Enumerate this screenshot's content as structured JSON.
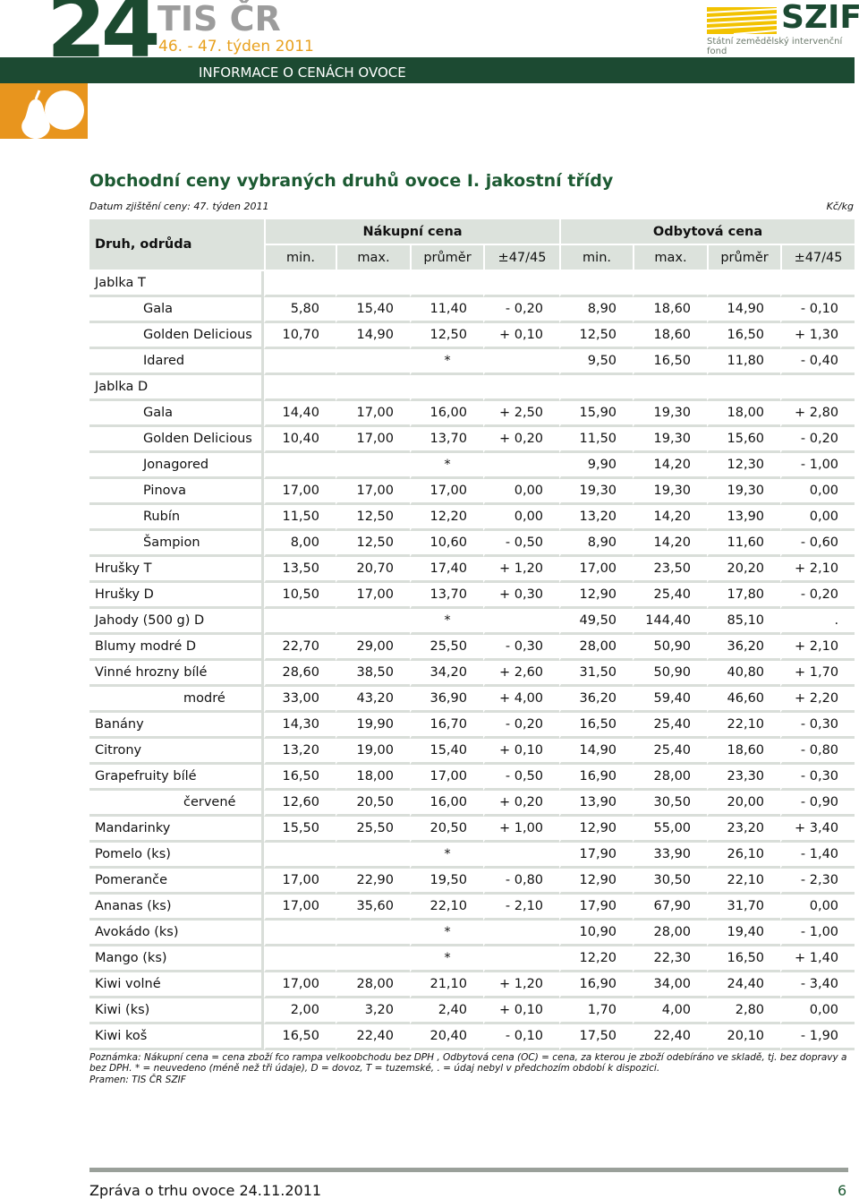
{
  "header": {
    "number": "24",
    "brand": "TIS ČR",
    "week": "46. - 47. týden 2011",
    "band": "INFORMACE O CENÁCH OVOCE",
    "logo": "SZIF",
    "logo_subtitle": "Státní zemědělský intervenční fond"
  },
  "title": "Obchodní ceny vybraných druhů ovoce I. jakostní třídy",
  "date": "Datum zjištění ceny: 47. týden 2011",
  "unit": "Kč/kg",
  "table": {
    "columns": {
      "label": "Druh, odrůda",
      "groups": [
        "Nákupní cena",
        "Odbytová cena"
      ],
      "sub": [
        "min.",
        "max.",
        "průměr",
        "±47/45",
        "min.",
        "max.",
        "průměr",
        "±47/45"
      ]
    },
    "rows": [
      {
        "label": "Jablka T",
        "sub": [
          {
            "label": "Gala",
            "cells": [
              "5,80",
              "15,40",
              "11,40",
              "- 0,20",
              "8,90",
              "18,60",
              "14,90",
              "- 0,10"
            ]
          },
          {
            "label": "Golden Delicious",
            "cells": [
              "10,70",
              "14,90",
              "12,50",
              "+ 0,10",
              "12,50",
              "18,60",
              "16,50",
              "+ 1,30"
            ]
          },
          {
            "label": "Idared",
            "cells": [
              null,
              null,
              "*",
              null,
              "9,50",
              "16,50",
              "11,80",
              "- 0,40"
            ]
          }
        ]
      },
      {
        "label": "Jablka D",
        "sub": [
          {
            "label": "Gala",
            "cells": [
              "14,40",
              "17,00",
              "16,00",
              "+ 2,50",
              "15,90",
              "19,30",
              "18,00",
              "+ 2,80"
            ]
          },
          {
            "label": "Golden Delicious",
            "cells": [
              "10,40",
              "17,00",
              "13,70",
              "+ 0,20",
              "11,50",
              "19,30",
              "15,60",
              "- 0,20"
            ]
          },
          {
            "label": "Jonagored",
            "cells": [
              null,
              null,
              "*",
              null,
              "9,90",
              "14,20",
              "12,30",
              "- 1,00"
            ]
          },
          {
            "label": "Pinova",
            "cells": [
              "17,00",
              "17,00",
              "17,00",
              "0,00",
              "19,30",
              "19,30",
              "19,30",
              "0,00"
            ]
          },
          {
            "label": "Rubín",
            "cells": [
              "11,50",
              "12,50",
              "12,20",
              "0,00",
              "13,20",
              "14,20",
              "13,90",
              "0,00"
            ]
          },
          {
            "label": "Šampion",
            "cells": [
              "8,00",
              "12,50",
              "10,60",
              "- 0,50",
              "8,90",
              "14,20",
              "11,60",
              "- 0,60"
            ]
          }
        ]
      },
      {
        "label": "Hrušky T",
        "cells": [
          "13,50",
          "20,70",
          "17,40",
          "+ 1,20",
          "17,00",
          "23,50",
          "20,20",
          "+ 2,10"
        ]
      },
      {
        "label": "Hrušky D",
        "cells": [
          "10,50",
          "17,00",
          "13,70",
          "+ 0,30",
          "12,90",
          "25,40",
          "17,80",
          "- 0,20"
        ]
      },
      {
        "label": "Jahody (500 g) D",
        "cells": [
          null,
          null,
          "*",
          null,
          "49,50",
          "144,40",
          "85,10",
          "."
        ]
      },
      {
        "label": "Blumy modré D",
        "cells": [
          "22,70",
          "29,00",
          "25,50",
          "- 0,30",
          "28,00",
          "50,90",
          "36,20",
          "+ 2,10"
        ]
      },
      {
        "label": "Vinné hrozny bílé",
        "cells": [
          "28,60",
          "38,50",
          "34,20",
          "+ 2,60",
          "31,50",
          "50,90",
          "40,80",
          "+ 1,70"
        ],
        "sub": [
          {
            "label": "modré",
            "cells": [
              "33,00",
              "43,20",
              "36,90",
              "+ 4,00",
              "36,20",
              "59,40",
              "46,60",
              "+ 2,20"
            ]
          }
        ]
      },
      {
        "label": "Banány",
        "cells": [
          "14,30",
          "19,90",
          "16,70",
          "- 0,20",
          "16,50",
          "25,40",
          "22,10",
          "- 0,30"
        ]
      },
      {
        "label": "Citrony",
        "cells": [
          "13,20",
          "19,00",
          "15,40",
          "+ 0,10",
          "14,90",
          "25,40",
          "18,60",
          "- 0,80"
        ]
      },
      {
        "label": "Grapefruity bílé",
        "cells": [
          "16,50",
          "18,00",
          "17,00",
          "- 0,50",
          "16,90",
          "28,00",
          "23,30",
          "- 0,30"
        ],
        "sub": [
          {
            "label": "červené",
            "cells": [
              "12,60",
              "20,50",
              "16,00",
              "+ 0,20",
              "13,90",
              "30,50",
              "20,00",
              "- 0,90"
            ]
          }
        ]
      },
      {
        "label": "Mandarinky",
        "cells": [
          "15,50",
          "25,50",
          "20,50",
          "+ 1,00",
          "12,90",
          "55,00",
          "23,20",
          "+ 3,40"
        ]
      },
      {
        "label": "Pomelo (ks)",
        "cells": [
          null,
          null,
          "*",
          null,
          "17,90",
          "33,90",
          "26,10",
          "- 1,40"
        ]
      },
      {
        "label": "Pomeranče",
        "cells": [
          "17,00",
          "22,90",
          "19,50",
          "- 0,80",
          "12,90",
          "30,50",
          "22,10",
          "- 2,30"
        ]
      },
      {
        "label": "Ananas (ks)",
        "cells": [
          "17,00",
          "35,60",
          "22,10",
          "- 2,10",
          "17,90",
          "67,90",
          "31,70",
          "0,00"
        ]
      },
      {
        "label": "Avokádo (ks)",
        "cells": [
          null,
          null,
          "*",
          null,
          "10,90",
          "28,00",
          "19,40",
          "- 1,00"
        ]
      },
      {
        "label": "Mango (ks)",
        "cells": [
          null,
          null,
          "*",
          null,
          "12,20",
          "22,30",
          "16,50",
          "+ 1,40"
        ]
      },
      {
        "label": "Kiwi volné",
        "cells": [
          "17,00",
          "28,00",
          "21,10",
          "+ 1,20",
          "16,90",
          "34,00",
          "24,40",
          "- 3,40"
        ]
      },
      {
        "label": "Kiwi (ks)",
        "cells": [
          "2,00",
          "3,20",
          "2,40",
          "+ 0,10",
          "1,70",
          "4,00",
          "2,80",
          "0,00"
        ]
      },
      {
        "label": "Kiwi koš",
        "cells": [
          "16,50",
          "22,40",
          "20,40",
          "- 0,10",
          "17,50",
          "22,40",
          "20,10",
          "- 1,90"
        ]
      }
    ]
  },
  "note": "Poznámka: Nákupní cena = cena zboží fco rampa velkoobchodu bez DPH , Odbytová cena (OC)  =  cena, za kterou je zboží odebíráno ve skladě, tj.  bez dopravy a bez DPH.   * = neuvedeno (méně než tři údaje), D = dovoz, T = tuzemské,  . = údaj nebyl v předchozím období k dispozici.",
  "source": "Pramen: TIS ČR  SZIF",
  "footer": {
    "text": "Zpráva o trhu ovoce 24.11.2011",
    "page": "6"
  }
}
